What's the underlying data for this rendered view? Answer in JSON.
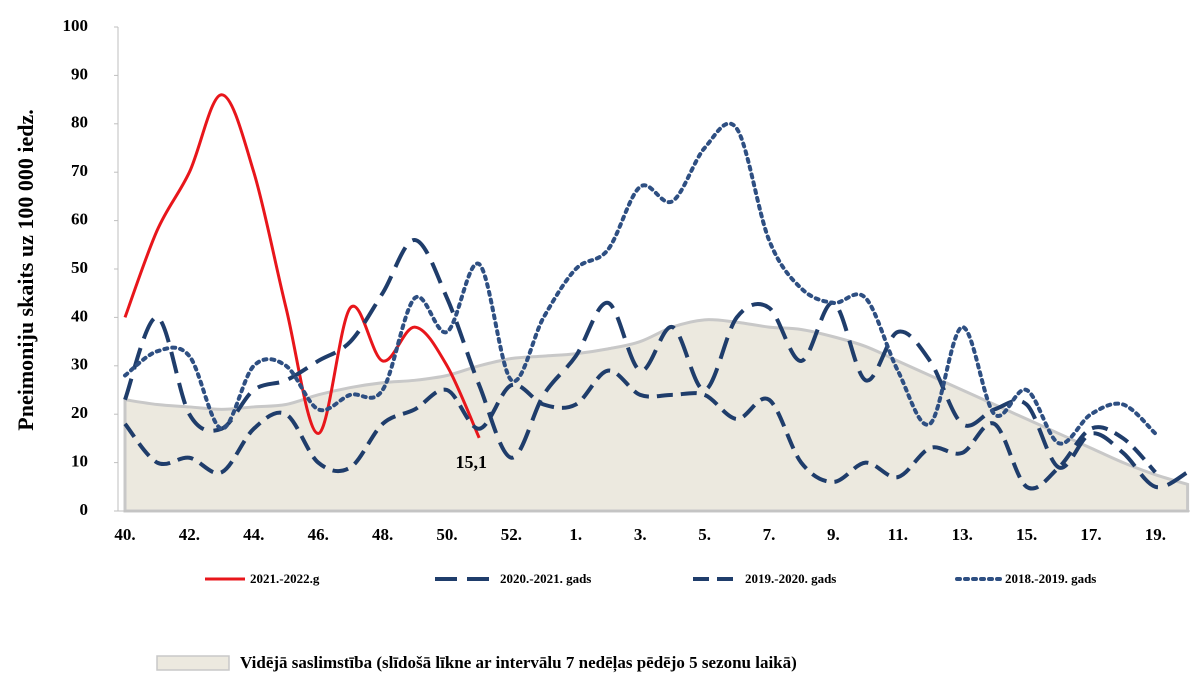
{
  "chart_data": {
    "type": "line",
    "y_label": "Pneimoniju skaits uz 100 000 iedz.",
    "categories": [
      "40.",
      null,
      "42.",
      null,
      "44.",
      null,
      "46.",
      null,
      "48.",
      null,
      "50.",
      null,
      "52.",
      null,
      "1.",
      null,
      "3.",
      null,
      "5.",
      null,
      "7.",
      null,
      "9.",
      null,
      "11.",
      null,
      "13.",
      null,
      "15.",
      null,
      "17.",
      null,
      "19.",
      null
    ],
    "ylim": [
      0,
      100
    ],
    "yticks": [
      0,
      10,
      20,
      30,
      40,
      50,
      60,
      70,
      80,
      90,
      100
    ],
    "area": {
      "name": "Vidējā saslimstība (slīdošā līkne ar intervālu 7 nedēļas pēdējo 5 sezonu laikā)",
      "color": "#ece9df",
      "values": [
        23,
        22,
        21.5,
        21,
        21.5,
        22,
        24,
        25.5,
        26.5,
        27,
        28,
        30,
        31.5,
        32,
        32.5,
        33.5,
        35,
        38,
        39.5,
        39,
        38,
        37.5,
        36,
        34,
        31,
        28,
        25,
        22,
        19,
        16,
        13,
        10,
        7.5,
        5.5
      ]
    },
    "series": [
      {
        "name": "2021.-2022.g",
        "color": "#e8161b",
        "style": "solid",
        "values": [
          40,
          58,
          70,
          86,
          70,
          42,
          16,
          42,
          31,
          38,
          30,
          15.1,
          null,
          null,
          null,
          null,
          null,
          null,
          null,
          null,
          null,
          null,
          null,
          null,
          null,
          null,
          null,
          null,
          null,
          null,
          null,
          null,
          null,
          null
        ],
        "value_labels": [
          null,
          null,
          null,
          null,
          null,
          null,
          null,
          null,
          null,
          null,
          null,
          "15,1",
          null,
          null,
          null,
          null,
          null,
          null,
          null,
          null,
          null,
          null,
          null,
          null,
          null,
          null,
          null,
          null,
          null,
          null,
          null,
          null,
          null,
          null
        ]
      },
      {
        "name": "2020.-2021. gads",
        "color": "#1f3d6b",
        "style": "dash",
        "values": [
          23,
          40,
          20,
          17,
          25,
          27,
          31,
          35,
          45,
          56,
          44,
          26,
          11,
          24,
          32,
          43,
          29,
          38,
          25,
          40,
          42,
          31,
          43,
          27,
          37,
          31,
          18,
          21,
          22,
          9,
          16,
          12,
          5,
          8
        ]
      },
      {
        "name": "2019.-2020. gads",
        "color": "#1f3d6b",
        "style": "dashdot",
        "values": [
          18,
          10,
          11,
          8,
          17,
          20,
          10,
          9,
          18,
          21,
          25,
          17,
          26,
          22,
          22,
          29,
          24,
          24,
          24,
          19,
          23,
          10,
          6,
          10,
          7,
          13,
          12,
          18,
          5,
          9,
          17,
          15,
          8,
          null
        ]
      },
      {
        "name": "2018.-2019. gads",
        "color": "#2e4f82",
        "style": "dot",
        "values": [
          28,
          33,
          32,
          17,
          30,
          30,
          21,
          24,
          25,
          44,
          37,
          51,
          27,
          40,
          50,
          54,
          67,
          64,
          75,
          79,
          56,
          46,
          43,
          44,
          29,
          18,
          38,
          20,
          25,
          14,
          20,
          22,
          16,
          null
        ]
      }
    ]
  }
}
